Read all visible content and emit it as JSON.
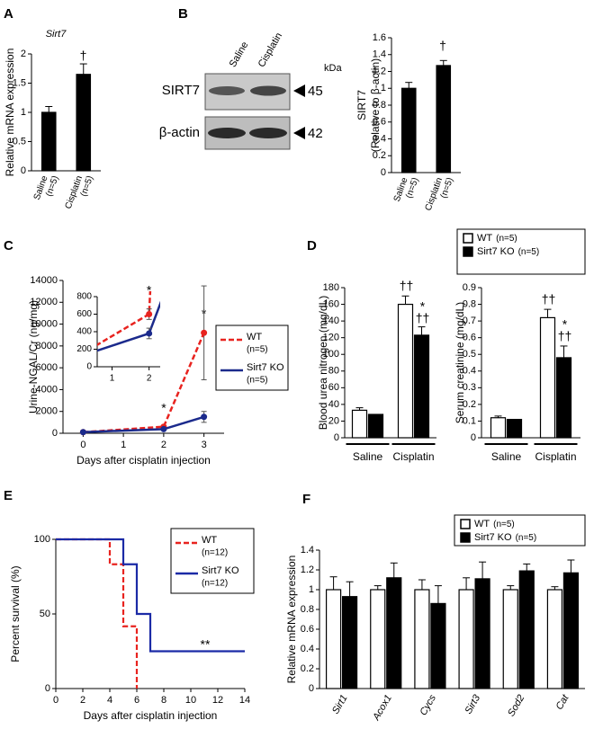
{
  "western_blot": {
    "panel": "B",
    "lanes": [
      "Saline",
      "Cisplatin"
    ],
    "unit": "kDa",
    "bands": [
      {
        "label": "SIRT7",
        "size": 45
      },
      {
        "label": "β-actin",
        "size": 42
      }
    ]
  },
  "chart_data": [
    {
      "type": "bar",
      "panel": "A",
      "title": "Sirt7",
      "ylabel": "Relative mRNA expression",
      "categories": [
        "Saline",
        "Cisplatin"
      ],
      "category_notes": [
        "(n=5)",
        "(n=5)"
      ],
      "values": [
        1.0,
        1.65
      ],
      "errors": [
        0.1,
        0.18
      ],
      "color": "#000000",
      "ylim": [
        0,
        2
      ],
      "yticks": [
        0,
        0.5,
        1,
        1.5,
        2
      ],
      "annotations": [
        "†"
      ]
    },
    {
      "type": "bar",
      "ylabel": [
        "SIRT7",
        "(Relative to β-actin)"
      ],
      "categories": [
        "Saline",
        "Cisplatin"
      ],
      "category_notes": [
        "(n=5)",
        "(n=5)"
      ],
      "values": [
        1.0,
        1.27
      ],
      "errors": [
        0.07,
        0.06
      ],
      "color": "#000000",
      "ylim": [
        0,
        1.6
      ],
      "yticks": [
        0,
        0.2,
        0.4,
        0.6,
        0.8,
        1,
        1.2,
        1.4,
        1.6
      ],
      "annotations": [
        "†"
      ]
    },
    {
      "type": "line",
      "panel": "C",
      "ylabel": "Urine-NGAL/Cr (ng/mg)",
      "xlabel": "Days after cisplatin injection",
      "xlim": [
        -0.5,
        3.5
      ],
      "xticks": [
        0,
        1,
        2,
        3
      ],
      "ylim": [
        0,
        14000
      ],
      "yticks": [
        0,
        2000,
        4000,
        6000,
        8000,
        10000,
        12000,
        14000
      ],
      "series": [
        {
          "name": "WT",
          "note": "(n=5)",
          "color": "#e8231f",
          "line_style": "dashed",
          "x": [
            0,
            2,
            3
          ],
          "values": [
            100,
            600,
            9200
          ],
          "errors": [
            null,
            60,
            4300
          ]
        },
        {
          "name": "Sirt7 KO",
          "note": "(n=5)",
          "color": "#1b2a8c",
          "line_style": "solid",
          "x": [
            0,
            2,
            3
          ],
          "values": [
            100,
            380,
            1500
          ],
          "errors": [
            null,
            60,
            500
          ]
        }
      ],
      "annotations": [
        "*",
        "*"
      ],
      "inset": {
        "xlim": [
          0.6,
          2.3
        ],
        "ylim": [
          0,
          800
        ],
        "xticks": [
          1,
          2
        ],
        "yticks": [
          0,
          200,
          400,
          600,
          800
        ],
        "annotations": [
          "*"
        ]
      }
    },
    {
      "type": "bar",
      "panel": "D",
      "ylabel": "Blood urea nitrogen (mg/dL)",
      "categories": [
        "Saline",
        "Cisplatin"
      ],
      "series": [
        {
          "name": "WT",
          "note": "(n=5)",
          "color": "#ffffff",
          "values": [
            33,
            160
          ],
          "errors": [
            3,
            10
          ]
        },
        {
          "name": "Sirt7 KO",
          "note": "(n=5)",
          "color": "#000000",
          "values": [
            28,
            123
          ],
          "errors": [
            null,
            10
          ]
        }
      ],
      "ylim": [
        0,
        180
      ],
      "yticks": [
        0,
        20,
        40,
        60,
        80,
        100,
        120,
        140,
        160,
        180
      ],
      "annotations": [
        "††",
        "*",
        "††"
      ]
    },
    {
      "type": "bar",
      "ylabel": "Serum creatinine (mg/dL)",
      "categories": [
        "Saline",
        "Cisplatin"
      ],
      "series": [
        {
          "color": "#ffffff",
          "values": [
            0.12,
            0.72
          ],
          "errors": [
            0.01,
            0.05
          ]
        },
        {
          "color": "#000000",
          "values": [
            0.11,
            0.48
          ],
          "errors": [
            null,
            0.07
          ]
        }
      ],
      "ylim": [
        0,
        0.9
      ],
      "yticks": [
        0,
        0.1,
        0.2,
        0.3,
        0.4,
        0.5,
        0.6,
        0.7,
        0.8,
        0.9
      ],
      "annotations": [
        "††",
        "*",
        "††"
      ]
    },
    {
      "type": "step",
      "panel": "E",
      "ylabel": "Percent survival (%)",
      "xlabel": "Days after cisplatin injection",
      "xlim": [
        0,
        14
      ],
      "xticks": [
        0,
        2,
        4,
        6,
        8,
        10,
        12,
        14
      ],
      "ylim": [
        0,
        100
      ],
      "yticks": [
        0,
        50,
        100
      ],
      "series": [
        {
          "name": "WT",
          "note": "(n=12)",
          "color": "#e8231f",
          "line_style": "dashed",
          "x": [
            0,
            4,
            5,
            6
          ],
          "values": [
            100,
            83.3,
            41.7,
            0
          ]
        },
        {
          "name": "Sirt7 KO",
          "note": "(n=12)",
          "color": "#1b2aa6",
          "line_style": "solid",
          "x": [
            0,
            5,
            6,
            7
          ],
          "values": [
            100,
            83.3,
            50,
            25
          ]
        }
      ],
      "annotations": [
        "**"
      ]
    },
    {
      "type": "bar",
      "panel": "F",
      "ylabel": "Relative mRNA expression",
      "categories": [
        "Sirt1",
        "Acox1",
        "Cycs",
        "Sirt3",
        "Sod2",
        "Cat"
      ],
      "series": [
        {
          "name": "WT",
          "note": "(n=5)",
          "color": "#ffffff",
          "values": [
            1,
            1,
            1,
            1,
            1,
            1
          ],
          "errors": [
            0.13,
            0.04,
            0.1,
            0.12,
            0.04,
            0.03
          ]
        },
        {
          "name": "Sirt7 KO",
          "note": "(n=5)",
          "color": "#000000",
          "values": [
            0.93,
            1.12,
            0.86,
            1.11,
            1.19,
            1.17
          ],
          "errors": [
            0.15,
            0.15,
            0.18,
            0.17,
            0.07,
            0.13
          ]
        }
      ],
      "ylim": [
        0,
        1.4
      ],
      "yticks": [
        0,
        0.2,
        0.4,
        0.6,
        0.8,
        1,
        1.2,
        1.4
      ]
    }
  ]
}
